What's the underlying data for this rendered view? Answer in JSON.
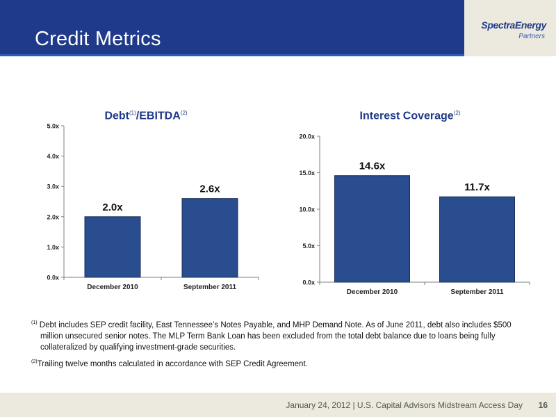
{
  "header": {
    "title": "Credit Metrics"
  },
  "logo": {
    "name": "SpectraEnergy",
    "sub": "Partners"
  },
  "chart_data": [
    {
      "type": "bar",
      "title": "Debt/EBITDA",
      "title_parts": {
        "main": "Debt",
        "sup1": "(1)",
        "middle": "/EBITDA",
        "sup2": "(2)"
      },
      "categories": [
        "December 2010",
        "September 2011"
      ],
      "values": [
        2.0,
        2.6
      ],
      "data_labels": [
        "2.0x",
        "2.6x"
      ],
      "yticks": [
        "0.0x",
        "1.0x",
        "2.0x",
        "3.0x",
        "4.0x",
        "5.0x"
      ],
      "ylim": [
        0,
        5
      ],
      "grid": false,
      "bar_color": "#2a4d8f"
    },
    {
      "type": "bar",
      "title": "Interest Coverage",
      "title_parts": {
        "main": "Interest Coverage",
        "sup": "(2)"
      },
      "categories": [
        "December 2010",
        "September 2011"
      ],
      "values": [
        14.6,
        11.7
      ],
      "data_labels": [
        "14.6x",
        "11.7x"
      ],
      "yticks": [
        "0.0x",
        "5.0x",
        "10.0x",
        "15.0x",
        "20.0x"
      ],
      "ylim": [
        0,
        20
      ],
      "grid": false,
      "bar_color": "#2a4d8f"
    }
  ],
  "footnotes": [
    {
      "marker": "(1)",
      "text": "Debt includes SEP credit facility, East Tennessee’s Notes Payable, and MHP Demand Note.  As of June 2011, debt also includes $500 million unsecured senior notes.  The MLP Term Bank Loan has been excluded from the total debt balance due to loans being fully collateralized by qualifying investment-grade securities."
    },
    {
      "marker": "(2)",
      "text": "Trailing twelve months calculated in accordance with SEP Credit Agreement."
    }
  ],
  "footer": {
    "text": "January 24, 2012 | U.S. Capital Advisors Midstream Access Day",
    "page": "16"
  },
  "colors": {
    "header": "#1f3a8a",
    "accent": "#2a4d8f",
    "footer_bg": "#eceadf"
  }
}
